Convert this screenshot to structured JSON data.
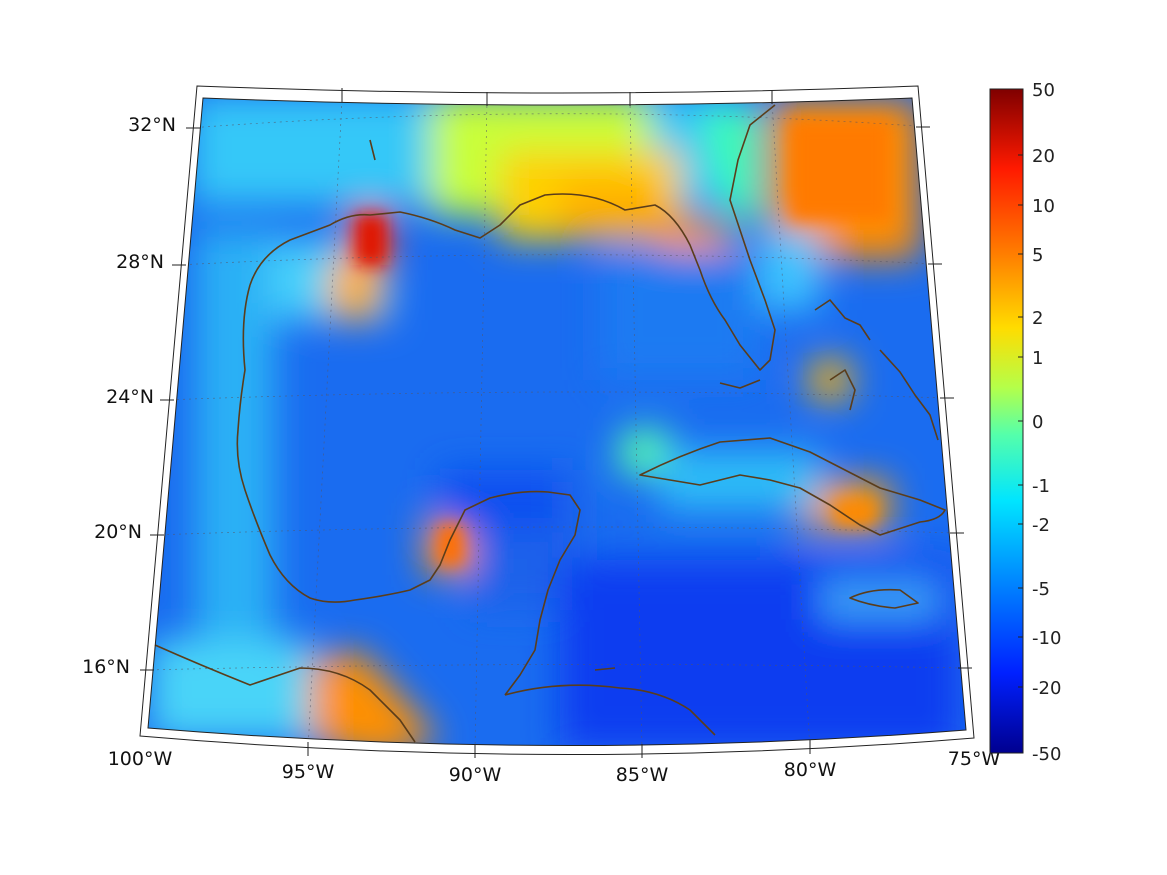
{
  "map": {
    "latitude_labels": [
      "32°N",
      "28°N",
      "24°N",
      "20°N",
      "16°N"
    ],
    "longitude_labels": [
      "100°W",
      "95°W",
      "90°W",
      "85°W",
      "80°W",
      "75°W"
    ],
    "coastline_color": "#5a3d1b",
    "background_color": "#1a6cf0"
  },
  "colorbar": {
    "tick_labels": [
      "50",
      "20",
      "10",
      "5",
      "2",
      "1",
      "0",
      "-1",
      "-2",
      "-5",
      "-10",
      "-20",
      "-50"
    ],
    "colormap": "jet"
  }
}
